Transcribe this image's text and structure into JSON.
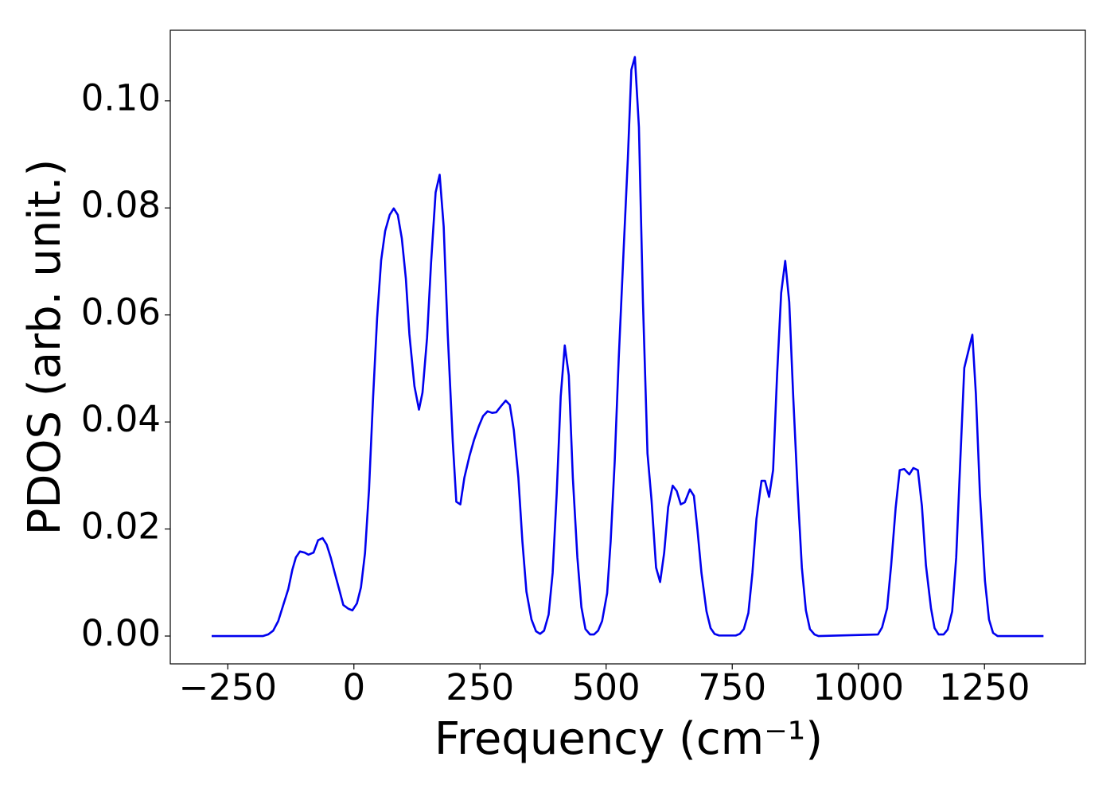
{
  "chart_data": {
    "type": "line",
    "xlabel": "Frequency (cm⁻¹)",
    "ylabel": "PDOS (arb. unit.)",
    "xlim": [
      -364,
      1450
    ],
    "ylim": [
      -0.0052,
      0.1132
    ],
    "xticks": [
      {
        "value": -250,
        "label": "−250"
      },
      0,
      250,
      500,
      750,
      1000,
      1250
    ],
    "yticks": [
      {
        "value": 0,
        "label": "0.00"
      },
      {
        "value": 0.02,
        "label": "0.02"
      },
      {
        "value": 0.04,
        "label": "0.04"
      },
      {
        "value": 0.06,
        "label": "0.06"
      },
      {
        "value": 0.08,
        "label": "0.08"
      },
      {
        "value": 0.1,
        "label": "0.10"
      }
    ],
    "grid": false,
    "series": [
      {
        "color": "#0000ee",
        "x": [
          -282,
          -180,
          -170,
          -160,
          -150,
          -140,
          -130,
          -122,
          -115,
          -107,
          -98,
          -90,
          -80,
          -71,
          -62,
          -54,
          -46,
          -38,
          -28,
          -21,
          -11,
          -3,
          6,
          14,
          22,
          30,
          38,
          46,
          54,
          62,
          71,
          79,
          87,
          95,
          103,
          110,
          120,
          129,
          136,
          145,
          153,
          162,
          170,
          178,
          186,
          196,
          203,
          211,
          219,
          229,
          238,
          248,
          256,
          265,
          274,
          282,
          292,
          301,
          309,
          317,
          326,
          334,
          342,
          352,
          361,
          369,
          377,
          386,
          394,
          402,
          410,
          418,
          426,
          434,
          443,
          451,
          459,
          468,
          476,
          484,
          492,
          502,
          509,
          517,
          525,
          535,
          543,
          550,
          557,
          565,
          573,
          582,
          590,
          599,
          607,
          615,
          623,
          632,
          640,
          648,
          656,
          666,
          674,
          681,
          689,
          699,
          707,
          715,
          724,
          757,
          765,
          773,
          782,
          790,
          798,
          808,
          815,
          823,
          831,
          839,
          847,
          855,
          863,
          871,
          880,
          888,
          896,
          904,
          913,
          921,
          1039,
          1047,
          1057,
          1065,
          1074,
          1082,
          1091,
          1101,
          1109,
          1118,
          1126,
          1134,
          1144,
          1151,
          1159,
          1169,
          1177,
          1186,
          1194,
          1202,
          1210,
          1226,
          1233,
          1241,
          1251,
          1259,
          1267,
          1276,
          1367
        ],
        "values": [
          0,
          0,
          0.0003,
          0.001,
          0.0028,
          0.0058,
          0.0088,
          0.0124,
          0.0147,
          0.0158,
          0.0156,
          0.0152,
          0.0156,
          0.0179,
          0.0183,
          0.0171,
          0.0147,
          0.0118,
          0.0083,
          0.0058,
          0.0051,
          0.0048,
          0.0061,
          0.0091,
          0.0155,
          0.0274,
          0.0445,
          0.0594,
          0.0702,
          0.0757,
          0.0787,
          0.0799,
          0.0787,
          0.0743,
          0.0668,
          0.0564,
          0.0467,
          0.0423,
          0.0455,
          0.0557,
          0.0698,
          0.0829,
          0.0862,
          0.0765,
          0.0564,
          0.0363,
          0.0251,
          0.0246,
          0.0296,
          0.0336,
          0.0366,
          0.0393,
          0.0411,
          0.042,
          0.0417,
          0.0418,
          0.043,
          0.044,
          0.0432,
          0.0385,
          0.0296,
          0.0177,
          0.0083,
          0.0031,
          0.0009,
          0.0004,
          0.001,
          0.004,
          0.0118,
          0.0266,
          0.0448,
          0.0543,
          0.0487,
          0.0296,
          0.0147,
          0.0054,
          0.0013,
          0.0003,
          0.0003,
          0.001,
          0.0028,
          0.008,
          0.0177,
          0.0326,
          0.0519,
          0.0728,
          0.0891,
          0.1058,
          0.1082,
          0.0951,
          0.0624,
          0.0341,
          0.0254,
          0.0128,
          0.0101,
          0.0155,
          0.0241,
          0.0281,
          0.0271,
          0.0246,
          0.025,
          0.0274,
          0.0262,
          0.0199,
          0.0118,
          0.0046,
          0.0015,
          0.0004,
          0.0001,
          0.0001,
          0.0004,
          0.0013,
          0.0043,
          0.0118,
          0.0219,
          0.029,
          0.029,
          0.026,
          0.031,
          0.049,
          0.0641,
          0.0701,
          0.0624,
          0.0445,
          0.0266,
          0.0128,
          0.0048,
          0.0013,
          0.0003,
          0,
          0.0003,
          0.0016,
          0.0052,
          0.0132,
          0.024,
          0.031,
          0.0312,
          0.0302,
          0.0314,
          0.031,
          0.0243,
          0.0132,
          0.0052,
          0.0015,
          0.0003,
          0.0003,
          0.0012,
          0.0046,
          0.0147,
          0.0326,
          0.0501,
          0.0563,
          0.0452,
          0.0266,
          0.0103,
          0.0031,
          0.0006,
          0,
          0
        ]
      }
    ]
  }
}
